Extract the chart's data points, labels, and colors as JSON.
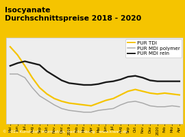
{
  "title_line1": "Isocyanate",
  "title_line2": "Durchschnittspreise 2018 - 2020",
  "title_color": "#000000",
  "title_bg": "#f5c400",
  "footer": "© 2020 Kunststoff Information, Bad Homburg - www.kiweb.de",
  "x_labels": [
    "Mai",
    "Jun",
    "Jul",
    "Aug",
    "Sep",
    "Okt",
    "Nov",
    "Dez",
    "2019",
    "Feb",
    "Mrz",
    "Apr",
    "Mai",
    "Jun",
    "Jul",
    "Aug",
    "Sep",
    "Okt",
    "Nov",
    "Dez",
    "2020",
    "Feb",
    "Mrz",
    "Apr"
  ],
  "pur_tdi": [
    100,
    91,
    79,
    66,
    55,
    48,
    43,
    40,
    38,
    37,
    36,
    35,
    38,
    41,
    43,
    47,
    51,
    53,
    51,
    49,
    48,
    49,
    48,
    47
  ],
  "pur_mdi_polymer": [
    70,
    70,
    66,
    55,
    46,
    41,
    36,
    32,
    30,
    29,
    28,
    28,
    30,
    31,
    32,
    36,
    39,
    40,
    38,
    35,
    34,
    34,
    35,
    34
  ],
  "pur_mdi_rein": [
    79,
    82,
    84,
    82,
    80,
    73,
    68,
    63,
    60,
    59,
    58,
    58,
    59,
    61,
    62,
    64,
    67,
    68,
    66,
    63,
    62,
    62,
    62,
    62
  ],
  "tdi_color": "#f5c400",
  "mdi_polymer_color": "#aaaaaa",
  "mdi_rein_color": "#1a1a1a",
  "fig_bg": "#f5c400",
  "plot_bg": "#eeeeee",
  "grid_color": "#ffffff",
  "footer_bg": "#888888",
  "footer_color": "#ffffff",
  "legend_fontsize": 5.2,
  "footer_fontsize": 4.2,
  "title_fontsize": 7.8,
  "tick_fontsize": 3.8,
  "ylim_min": 15,
  "ylim_max": 110
}
